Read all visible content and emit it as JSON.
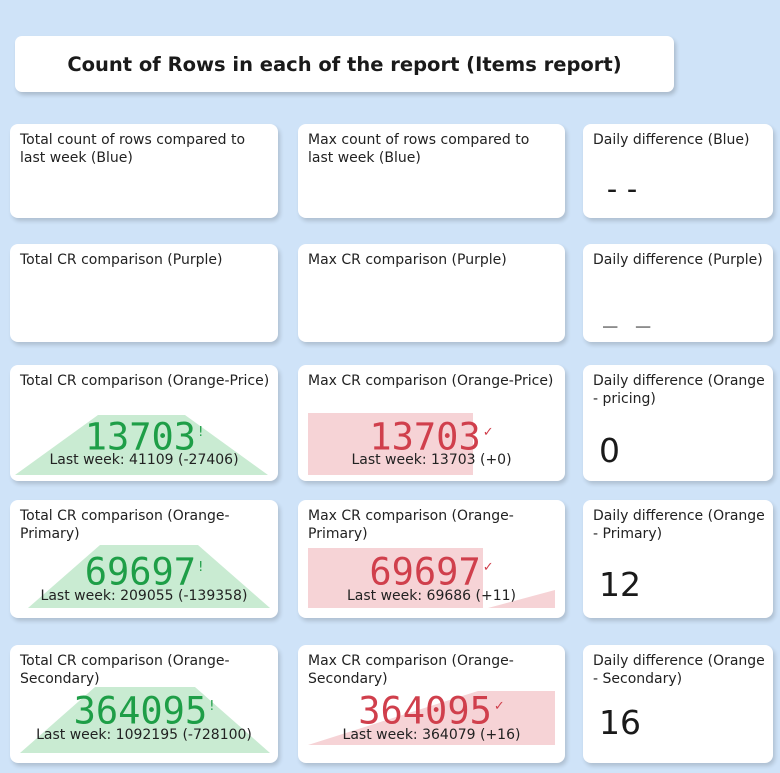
{
  "header": {
    "title": "Count of Rows in each of the report (Items report)"
  },
  "row1": {
    "total": {
      "title": "Total count of rows compared to last week (Blue)"
    },
    "max": {
      "title": "Max count of rows compared to last week (Blue)"
    },
    "daily": {
      "title": "Daily difference (Blue)",
      "value": "--"
    }
  },
  "row2": {
    "total": {
      "title": "Total CR comparison (Purple)"
    },
    "max": {
      "title": "Max CR comparison (Purple)"
    },
    "daily": {
      "title": "Daily difference (Purple)",
      "value": "_ _"
    }
  },
  "row3": {
    "total": {
      "title": "Total CR comparison (Orange-Price)",
      "value": "13703",
      "mark": "!",
      "last_week": "Last week: 41109 (-27406)"
    },
    "max": {
      "title": "Max CR comparison (Orange-Price)",
      "value": "13703",
      "mark": "✓",
      "last_week": "Last week: 13703 (+0)"
    },
    "daily": {
      "title": "Daily difference (Orange - pricing)",
      "value": "0"
    }
  },
  "row4": {
    "total": {
      "title": "Total CR comparison (Orange-Primary)",
      "value": "69697",
      "mark": "!",
      "last_week": "Last week: 209055 (-139358)"
    },
    "max": {
      "title": "Max CR comparison (Orange-Primary)",
      "value": "69697",
      "mark": "✓",
      "last_week": "Last week: 69686 (+11)"
    },
    "daily": {
      "title": "Daily difference (Orange - Primary)",
      "value": "12"
    }
  },
  "row5": {
    "total": {
      "title": "Total CR comparison (Orange-Secondary)",
      "value": "364095",
      "mark": "!",
      "last_week": "Last week: 1092195 (-728100)"
    },
    "max": {
      "title": "Max CR comparison (Orange-Secondary)",
      "value": "364095",
      "mark": "✓",
      "last_week": "Last week: 364079 (+16)"
    },
    "daily": {
      "title": "Daily difference (Orange - Secondary)",
      "value": "16"
    }
  },
  "colors": {
    "background": "#cfe3f8",
    "good": "#1e9e47",
    "good_fill": "#c9ebd2",
    "bad": "#d03f4c",
    "bad_fill": "#f6d3d6"
  }
}
